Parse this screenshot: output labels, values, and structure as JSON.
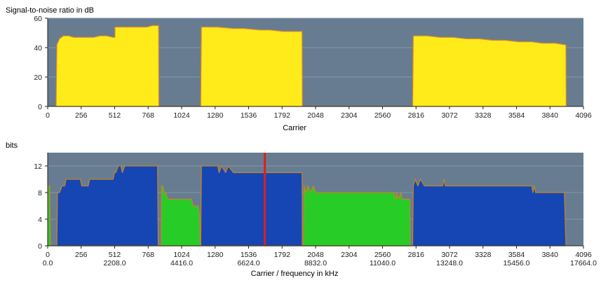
{
  "colors": {
    "plot_bg": "#677c91",
    "grid": "#8596a7",
    "snr_fill": "#ffea1a",
    "snr_line": "#d98a2a",
    "bits_down": "#1646b4",
    "bits_up": "#27cc27",
    "bits_line": "#c8861e",
    "marker": "#e21d1d"
  },
  "chart_data": [
    {
      "type": "area",
      "title": "Signal-to-noise ratio in dB",
      "xlabel": "Carrier",
      "xlim": [
        0,
        4096
      ],
      "ylim": [
        0,
        60
      ],
      "x_ticks": [
        "0",
        "256",
        "512",
        "768",
        "1024",
        "1280",
        "1536",
        "1792",
        "2048",
        "2304",
        "2560",
        "2816",
        "3072",
        "3328",
        "3584",
        "3840",
        "4096"
      ],
      "y_ticks": [
        "0",
        "20",
        "40",
        "60"
      ],
      "grid": true,
      "series": [
        {
          "points": [
            [
              64,
              0
            ],
            [
              70,
              42
            ],
            [
              90,
              46
            ],
            [
              120,
              48
            ],
            [
              160,
              48
            ],
            [
              200,
              47
            ],
            [
              250,
              47
            ],
            [
              300,
              47
            ],
            [
              350,
              47
            ],
            [
              400,
              48
            ],
            [
              450,
              48
            ],
            [
              500,
              47
            ],
            [
              514,
              47
            ],
            [
              514,
              54
            ],
            [
              560,
              54
            ],
            [
              620,
              54
            ],
            [
              700,
              54
            ],
            [
              760,
              54
            ],
            [
              800,
              55
            ],
            [
              848,
              55
            ],
            [
              850,
              0
            ],
            [
              1170,
              0
            ],
            [
              1175,
              54
            ],
            [
              1300,
              54
            ],
            [
              1420,
              53
            ],
            [
              1500,
              53
            ],
            [
              1620,
              52
            ],
            [
              1700,
              52
            ],
            [
              1800,
              51
            ],
            [
              1900,
              51
            ],
            [
              1945,
              51
            ],
            [
              1947,
              0
            ],
            [
              2790,
              0
            ],
            [
              2795,
              48
            ],
            [
              2900,
              48
            ],
            [
              3000,
              47
            ],
            [
              3100,
              47
            ],
            [
              3200,
              46
            ],
            [
              3300,
              46
            ],
            [
              3400,
              45
            ],
            [
              3500,
              45
            ],
            [
              3600,
              44
            ],
            [
              3700,
              44
            ],
            [
              3780,
              43
            ],
            [
              3880,
              43
            ],
            [
              3950,
              42
            ],
            [
              3962,
              42
            ],
            [
              3964,
              0
            ]
          ]
        }
      ]
    },
    {
      "type": "area",
      "title": "bits",
      "xlabel": "Carrier / frequency in kHz",
      "xlim": [
        0,
        4096
      ],
      "ylim": [
        0,
        14
      ],
      "x_ticks": [
        "0",
        "256",
        "512",
        "768",
        "1024",
        "1280",
        "1536",
        "1792",
        "2048",
        "2304",
        "2560",
        "2816",
        "3072",
        "3328",
        "3584",
        "3840",
        "4096"
      ],
      "x_ticks_secondary": [
        "0.0",
        "2208.0",
        "4416.0",
        "6624.0",
        "8832.0",
        "11040.0",
        "13248.0",
        "15456.0",
        "17664.0"
      ],
      "y_ticks": [
        "0",
        "4",
        "8",
        "12"
      ],
      "grid": true,
      "marker_carrier": 1660,
      "series": [
        {
          "band": "down",
          "points": [
            [
              70,
              0
            ],
            [
              75,
              8
            ],
            [
              90,
              8
            ],
            [
              110,
              9
            ],
            [
              130,
              9
            ],
            [
              140,
              10
            ],
            [
              250,
              10
            ],
            [
              260,
              9
            ],
            [
              310,
              9
            ],
            [
              320,
              10
            ],
            [
              500,
              10
            ],
            [
              510,
              11
            ],
            [
              520,
              11
            ],
            [
              540,
              12
            ],
            [
              560,
              12
            ],
            [
              570,
              11
            ],
            [
              590,
              12
            ],
            [
              840,
              12
            ],
            [
              845,
              0
            ],
            [
              1170,
              0
            ],
            [
              1175,
              12
            ],
            [
              1300,
              12
            ],
            [
              1310,
              11
            ],
            [
              1330,
              12
            ],
            [
              1360,
              11
            ],
            [
              1380,
              12
            ],
            [
              1420,
              11
            ],
            [
              1945,
              11
            ],
            [
              1946,
              0
            ],
            [
              2790,
              0
            ],
            [
              2795,
              9
            ],
            [
              2810,
              10
            ],
            [
              2830,
              9
            ],
            [
              2850,
              10
            ],
            [
              2880,
              9
            ],
            [
              3020,
              9
            ],
            [
              3030,
              10
            ],
            [
              3040,
              9
            ],
            [
              3700,
              9
            ],
            [
              3710,
              8
            ],
            [
              3720,
              9
            ],
            [
              3730,
              8
            ],
            [
              3950,
              8
            ],
            [
              3962,
              0
            ]
          ]
        },
        {
          "band": "up",
          "points": [
            [
              0,
              0
            ],
            [
              2,
              9
            ],
            [
              15,
              9
            ],
            [
              22,
              0
            ],
            [
              868,
              0
            ],
            [
              870,
              9
            ],
            [
              880,
              9
            ],
            [
              890,
              8
            ],
            [
              900,
              8
            ],
            [
              920,
              7
            ],
            [
              1100,
              7
            ],
            [
              1110,
              6
            ],
            [
              1150,
              6
            ],
            [
              1160,
              5
            ],
            [
              1166,
              0
            ],
            [
              1955,
              0
            ],
            [
              1960,
              9
            ],
            [
              1970,
              8
            ],
            [
              1990,
              9
            ],
            [
              2010,
              8
            ],
            [
              2030,
              9
            ],
            [
              2050,
              8
            ],
            [
              2650,
              8
            ],
            [
              2660,
              7
            ],
            [
              2670,
              8
            ],
            [
              2680,
              7
            ],
            [
              2700,
              8
            ],
            [
              2710,
              7
            ],
            [
              2770,
              7
            ],
            [
              2772,
              0
            ]
          ]
        }
      ]
    }
  ]
}
